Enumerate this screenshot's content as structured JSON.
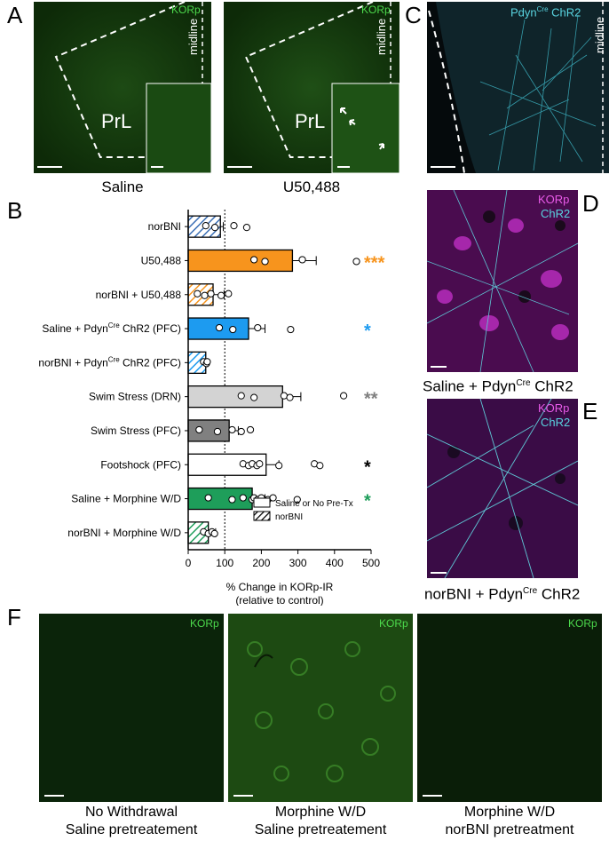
{
  "panels": {
    "A": {
      "letter": "A",
      "stain": "KORp",
      "region": "PrL",
      "midline": "midline",
      "captions": [
        "Saline",
        "U50,488"
      ]
    },
    "C": {
      "letter": "C",
      "stain": "Pdyn",
      "sup": "Cre",
      "stain_after": " ChR2",
      "midline": "midline"
    },
    "D": {
      "letter": "D",
      "label1": "KORp",
      "label2": "ChR2",
      "caption": "Saline + Pdyn",
      "caption_sup": "Cre",
      "caption_after": " ChR2"
    },
    "E": {
      "letter": "E",
      "label1": "KORp",
      "label2": "ChR2",
      "caption": "norBNI + Pdyn",
      "caption_sup": "Cre",
      "caption_after": " ChR2"
    },
    "F": {
      "letter": "F",
      "stain": "KORp",
      "captions": [
        {
          "line1": "No Withdrawal",
          "line2": "Saline pretreatement"
        },
        {
          "line1": "Morphine W/D",
          "line2": "Saline pretreatement"
        },
        {
          "line1": "Morphine W/D",
          "line2": "norBNI pretreatment"
        }
      ]
    },
    "B": {
      "letter": "B"
    }
  },
  "chart_data": {
    "type": "bar",
    "orientation": "horizontal",
    "xlabel": "% Change in KORp-IR",
    "xlabel2": "(relative to control)",
    "xlim": [
      0,
      500
    ],
    "xticks": [
      0,
      100,
      200,
      300,
      400,
      500
    ],
    "reference_line": 100,
    "legend": {
      "position": "bottom-right",
      "entries": [
        "Saline or No Pre-Tx",
        "norBNI"
      ]
    },
    "categories": [
      {
        "label": "norBNI",
        "sup": "",
        "label_after": "",
        "value": 88,
        "err": 8,
        "color": "#3a6fb5",
        "hatched": true,
        "points": [
          48,
          73,
          125,
          160
        ],
        "sig": "",
        "sig_color": ""
      },
      {
        "label": "U50,488",
        "sup": "",
        "label_after": "",
        "value": 285,
        "err": 65,
        "color": "#f7941d",
        "hatched": false,
        "points": [
          180,
          210,
          312,
          460
        ],
        "sig": "***",
        "sig_color": "#f7941d"
      },
      {
        "label": "norBNI + U50,488",
        "sup": "",
        "label_after": "",
        "value": 68,
        "err": 30,
        "color": "#f7941d",
        "hatched": true,
        "points": [
          25,
          45,
          62,
          90,
          110
        ],
        "sig": "",
        "sig_color": ""
      },
      {
        "label": "Saline + Pdyn",
        "sup": "Cre",
        "label_after": " ChR2 (PFC)",
        "value": 165,
        "err": 45,
        "color": "#1d9bf0",
        "hatched": false,
        "points": [
          85,
          122,
          190,
          280
        ],
        "sig": "*",
        "sig_color": "#1d9bf0"
      },
      {
        "label": "norBNI + Pdyn",
        "sup": "Cre",
        "label_after": " ChR2 (PFC)",
        "value": 48,
        "err": 5,
        "color": "#1d9bf0",
        "hatched": true,
        "points": [
          42,
          50,
          52
        ],
        "sig": "",
        "sig_color": ""
      },
      {
        "label": "Swim Stress (DRN)",
        "sup": "",
        "label_after": "",
        "value": 258,
        "err": 50,
        "color": "#d3d3d3",
        "hatched": false,
        "points": [
          145,
          180,
          262,
          278,
          425
        ],
        "sig": "**",
        "sig_color": "#808080"
      },
      {
        "label": "Swim Stress (PFC)",
        "sup": "",
        "label_after": "",
        "value": 112,
        "err": 25,
        "color": "#808080",
        "hatched": false,
        "points": [
          30,
          80,
          120,
          145,
          170
        ],
        "sig": "",
        "sig_color": ""
      },
      {
        "label": "Footshock (PFC)",
        "sup": "",
        "label_after": "",
        "value": 213,
        "err": 35,
        "color": "#ffffff",
        "hatched": false,
        "points": [
          150,
          165,
          175,
          188,
          195,
          248,
          345,
          360
        ],
        "sig": "*",
        "sig_color": "#000000"
      },
      {
        "label": "Saline + Morphine W/D",
        "sup": "",
        "label_after": "",
        "value": 175,
        "err": 35,
        "color": "#1e9e5a",
        "hatched": false,
        "points": [
          55,
          120,
          150,
          175,
          180,
          190,
          200,
          218,
          232,
          298
        ],
        "sig": "*",
        "sig_color": "#1e9e5a"
      },
      {
        "label": "norBNI + Morphine W/D",
        "sup": "",
        "label_after": "",
        "value": 55,
        "err": 20,
        "color": "#1e9e5a",
        "hatched": true,
        "points": [
          42,
          55,
          65,
          72
        ],
        "sig": "",
        "sig_color": ""
      }
    ]
  }
}
